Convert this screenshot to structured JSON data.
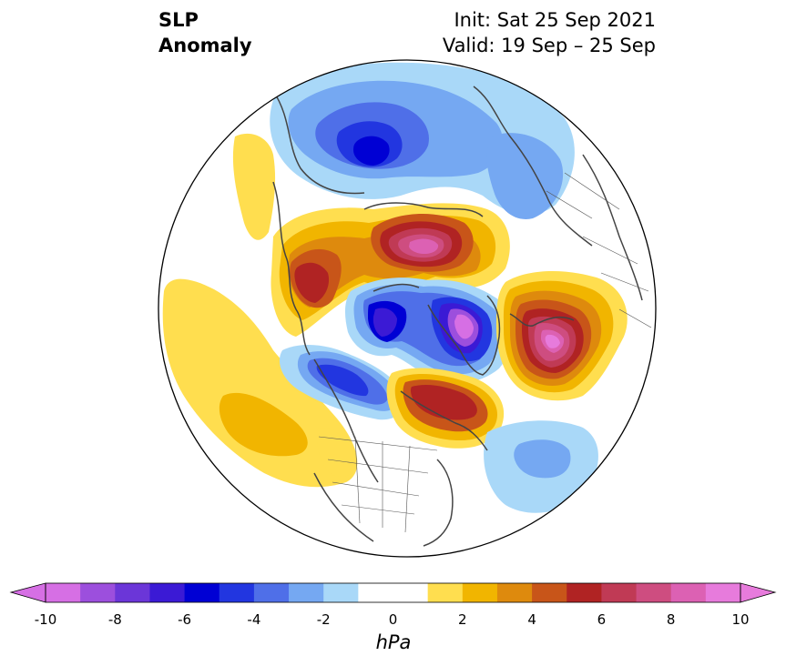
{
  "title": {
    "line1": "SLP",
    "line2": "Anomaly"
  },
  "info": {
    "init": "Init: Sat 25 Sep 2021",
    "valid": "Valid: 19 Sep – 25 Sep"
  },
  "colorbar": {
    "unit": "hPa",
    "ticks": [
      "-10",
      "-8",
      "-6",
      "-4",
      "-2",
      "0",
      "2",
      "4",
      "6",
      "8",
      "10"
    ],
    "colors": [
      "#d66fe4",
      "#9c4fdd",
      "#6b36d8",
      "#3b1ad5",
      "#0000d4",
      "#2236e0",
      "#4f6fe8",
      "#75a8f2",
      "#a9d8f8",
      "#ffffff",
      "#ffffff",
      "#ffde4f",
      "#f1b500",
      "#de8a0d",
      "#c85519",
      "#b02323",
      "#c03a55",
      "#ce4d80",
      "#dc61b3",
      "#e77bdc"
    ],
    "extend_min_color": "#d66fe4",
    "extend_max_color": "#e77bdc"
  },
  "map": {
    "projection": "north-polar-stereographic",
    "region": "Northern Hemisphere",
    "variable": "Sea Level Pressure Anomaly"
  }
}
